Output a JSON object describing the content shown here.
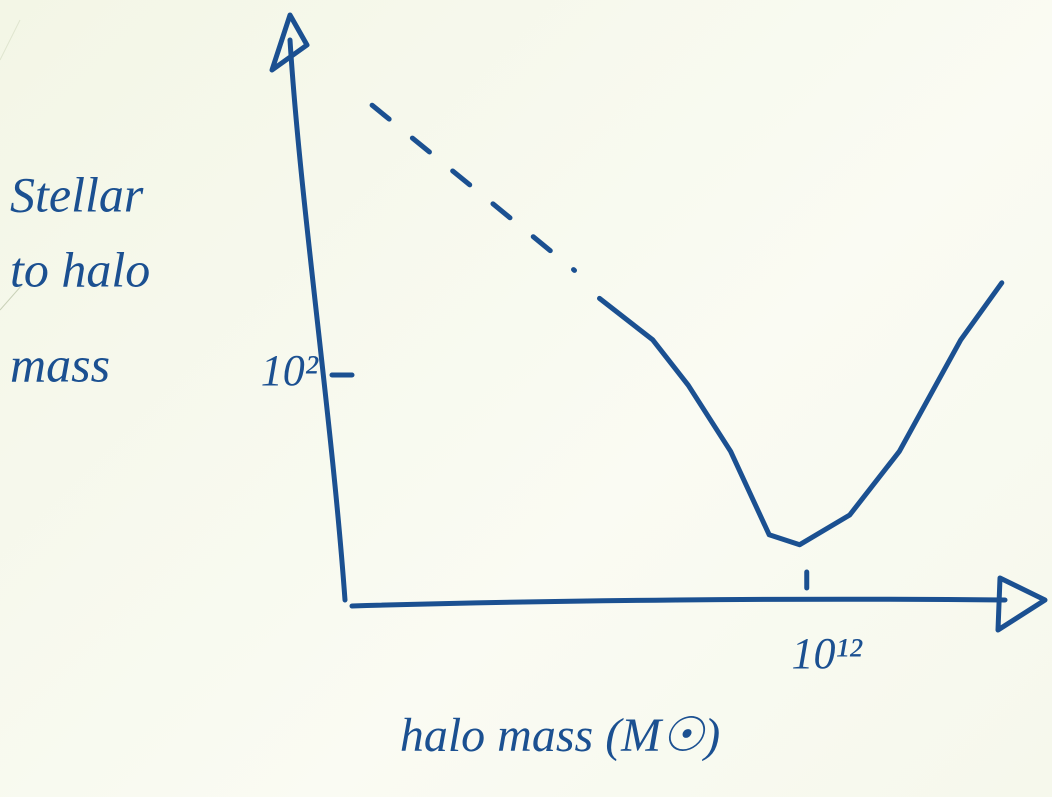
{
  "chart_data": {
    "type": "line",
    "ylabel_lines": [
      "Stellar",
      "to halo",
      "mass"
    ],
    "xlabel": "halo mass (M☉)",
    "xscale": "log",
    "yscale": "log",
    "xlim": [
      1000000000,
      20000000000000
    ],
    "ylim": [
      1,
      100000
    ],
    "xticks": [
      {
        "value": 1000000000000,
        "label": "10¹²"
      }
    ],
    "yticks": [
      {
        "value": 100,
        "label": "10²"
      }
    ],
    "series": [
      {
        "color": "#1b5091",
        "dashed": true,
        "x": [
          1500000000,
          31000000000
        ],
        "values": [
          25000,
          850
        ]
      },
      {
        "color": "#1b5091",
        "dashed": false,
        "x": [
          45000000000,
          100000000000,
          170000000000,
          320000000000,
          570000000000,
          900000000000,
          1900000000000,
          4000000000000,
          10000000000000,
          18500000000000
        ],
        "values": [
          480,
          205,
          81,
          21,
          3.8,
          3.1,
          5.7,
          21,
          205,
          660
        ]
      }
    ]
  }
}
